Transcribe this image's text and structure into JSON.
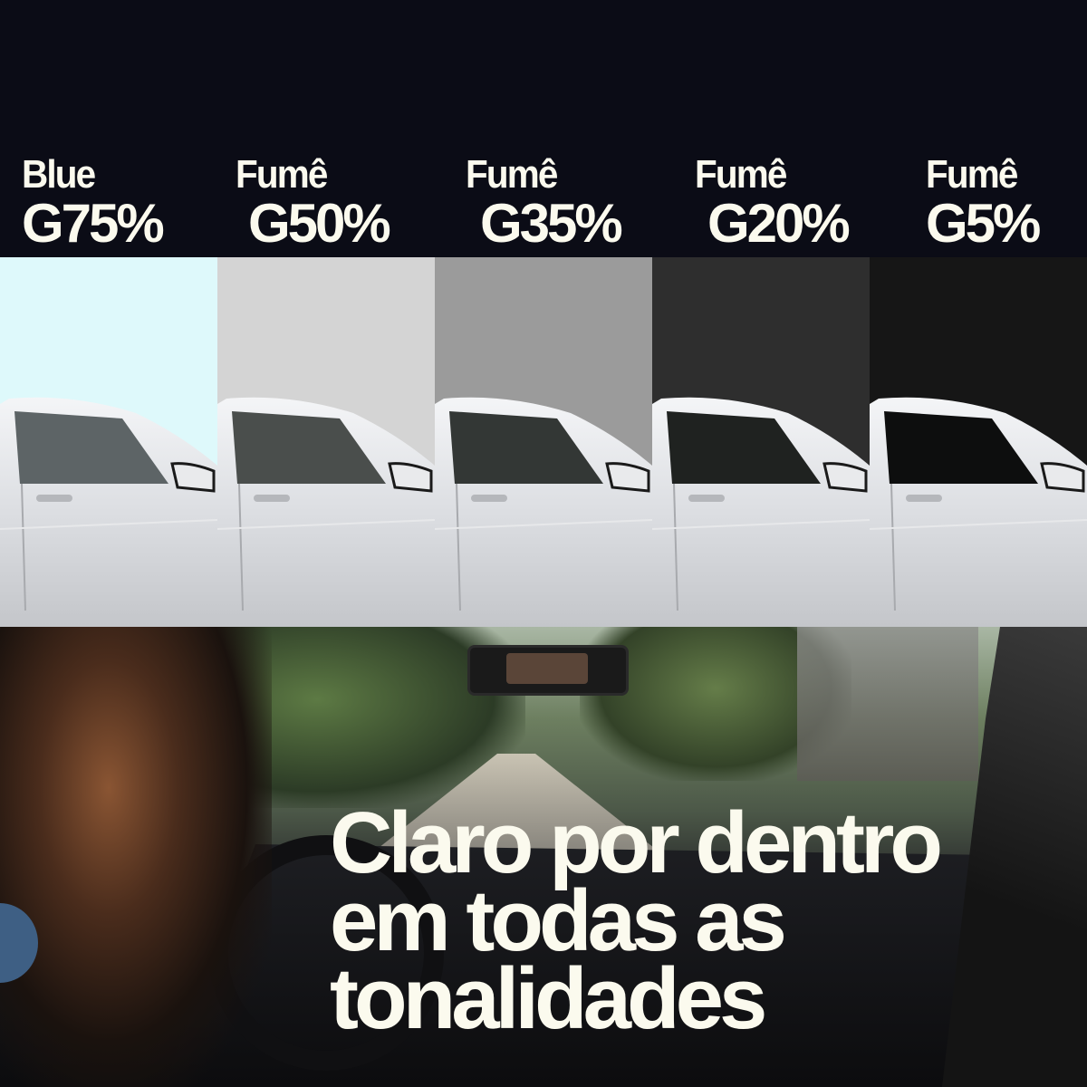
{
  "tints": [
    {
      "line1": "Blue",
      "line2": "G75%",
      "color": "#def9fb",
      "window": "#5d6466"
    },
    {
      "line1": "Fumê",
      "line2": "G50%",
      "color": "#d4d4d4",
      "window": "#4a4e4c"
    },
    {
      "line1": "Fumê",
      "line2": "G35%",
      "color": "#9b9b9b",
      "window": "#333735"
    },
    {
      "line1": "Fumê",
      "line2": "G20%",
      "color": "#2e2e2e",
      "window": "#1f2220"
    },
    {
      "line1": "Fumê",
      "line2": "G5%",
      "color": "#161616",
      "window": "#0d0e0e"
    }
  ],
  "headline": {
    "line1": "Claro por dentro",
    "line2": "em todas as",
    "line3": "tonalidades"
  },
  "colors": {
    "background": "#0b0c16",
    "text": "#fbfaee",
    "accent_circle": "#3e5f84"
  }
}
